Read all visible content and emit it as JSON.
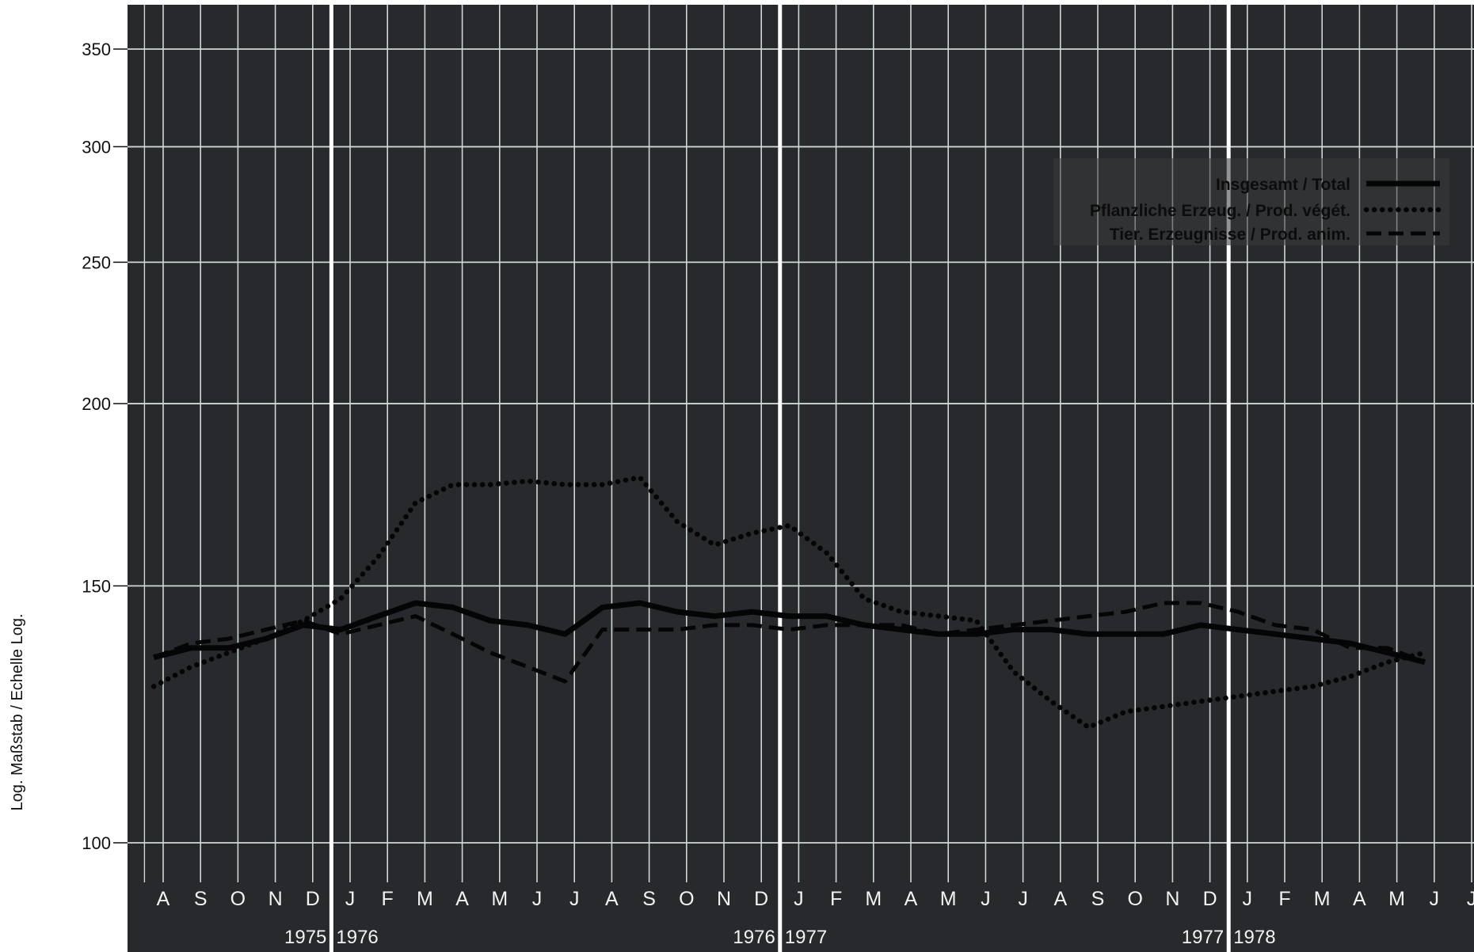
{
  "chart_data": {
    "type": "line",
    "ylabel": "Log. Maßstab / Echelle Log.",
    "y_scale": "log",
    "ylim": [
      90,
      365
    ],
    "y_ticks": [
      100,
      150,
      200,
      250,
      300,
      350
    ],
    "y_tick_labels": [
      "100",
      "150",
      "200",
      "250",
      "300",
      "350"
    ],
    "grid": true,
    "legend_position": "top-right",
    "month_labels": [
      "A",
      "S",
      "O",
      "N",
      "D",
      "J",
      "F",
      "M",
      "A",
      "M",
      "J",
      "J",
      "A",
      "S",
      "O",
      "N",
      "D",
      "J",
      "F",
      "M",
      "A",
      "M",
      "J",
      "J",
      "A",
      "S",
      "O",
      "N",
      "D",
      "J",
      "F",
      "M",
      "A",
      "M",
      "J",
      "J"
    ],
    "x": [
      "1975-08",
      "1975-09",
      "1975-10",
      "1975-11",
      "1975-12",
      "1976-01",
      "1976-02",
      "1976-03",
      "1976-04",
      "1976-05",
      "1976-06",
      "1976-07",
      "1976-08",
      "1976-09",
      "1976-10",
      "1976-11",
      "1976-12",
      "1977-01",
      "1977-02",
      "1977-03",
      "1977-04",
      "1977-05",
      "1977-06",
      "1977-07",
      "1977-08",
      "1977-09",
      "1977-10",
      "1977-11",
      "1977-12",
      "1978-01",
      "1978-02",
      "1978-03",
      "1978-04",
      "1978-05",
      "1978-06"
    ],
    "year_labels": [
      {
        "left": "1975",
        "right": "1976"
      },
      {
        "left": "1976",
        "right": "1977"
      },
      {
        "left": "1977",
        "right": "1978"
      }
    ],
    "series": [
      {
        "name": "Insgesamt / Total",
        "style": "solid",
        "values": [
          134,
          136,
          136,
          138,
          141,
          140,
          143,
          146,
          145,
          142,
          141,
          139,
          145,
          146,
          144,
          143,
          144,
          143,
          143,
          141,
          140,
          139,
          139,
          140,
          140,
          139,
          139,
          139,
          141,
          140,
          139,
          138,
          137,
          135,
          133
        ]
      },
      {
        "name": "Pflanzliche Erzeug. / Prod. végét.",
        "style": "dotted",
        "values": [
          128,
          132,
          135,
          138,
          142,
          147,
          157,
          171,
          176,
          176,
          177,
          176,
          176,
          178,
          166,
          160,
          163,
          165,
          158,
          147,
          144,
          143,
          142,
          131,
          125,
          120,
          123,
          124,
          125,
          126,
          127,
          128,
          130,
          133,
          135
        ]
      },
      {
        "name": "Tier. Erzeugnisse / Prod. anim.",
        "style": "dashed",
        "values": [
          134,
          137,
          138,
          140,
          142,
          139,
          141,
          143,
          139,
          135,
          132,
          129,
          140,
          140,
          140,
          141,
          141,
          140,
          141,
          141,
          141,
          139,
          140,
          141,
          142,
          143,
          144,
          146,
          146,
          144,
          141,
          140,
          136,
          136,
          133
        ]
      }
    ]
  },
  "colors": {
    "plot_background": "#27292c",
    "grid_line": "#cfd9d4",
    "year_divider": "#ffffff",
    "series_line": "#050505",
    "legend_panel": "#3a3b3d"
  }
}
